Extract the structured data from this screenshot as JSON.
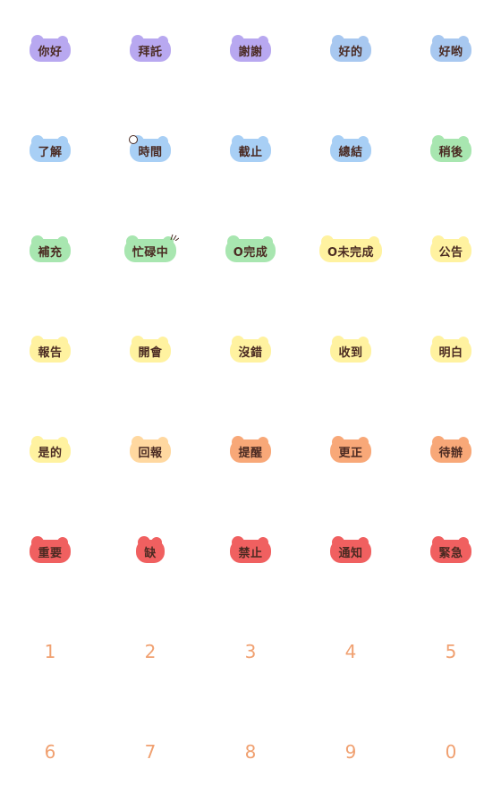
{
  "stickers": [
    {
      "text": "你好",
      "color": "#b8a8f0"
    },
    {
      "text": "拜託",
      "color": "#b8a8f0"
    },
    {
      "text": "謝謝",
      "color": "#b8a8f0"
    },
    {
      "text": "好的",
      "color": "#a8c8f0"
    },
    {
      "text": "好哟",
      "color": "#a8c8f0"
    },
    {
      "text": "了解",
      "color": "#a8cff5"
    },
    {
      "text": "時間",
      "color": "#a8cff5",
      "icon": "clock-icon"
    },
    {
      "text": "截止",
      "color": "#a8cff5"
    },
    {
      "text": "總結",
      "color": "#a8cff5"
    },
    {
      "text": "稍後",
      "color": "#a8e6b0"
    },
    {
      "text": "補充",
      "color": "#a8e6b0"
    },
    {
      "text": "忙碌中",
      "color": "#a8e6b0",
      "icon": "sparkle-lines-icon"
    },
    {
      "text": "O完成",
      "color": "#a8e6b0"
    },
    {
      "text": "O未完成",
      "color": "#fff2a0"
    },
    {
      "text": "公告",
      "color": "#fff2a0"
    },
    {
      "text": "報告",
      "color": "#fff2a0"
    },
    {
      "text": "開會",
      "color": "#fff2a0"
    },
    {
      "text": "沒錯",
      "color": "#fff2a0"
    },
    {
      "text": "收到",
      "color": "#fff2a0"
    },
    {
      "text": "明白",
      "color": "#fff2a0"
    },
    {
      "text": "是的",
      "color": "#fff2a0"
    },
    {
      "text": "回報",
      "color": "#ffd8a0"
    },
    {
      "text": "提醒",
      "color": "#f8a878"
    },
    {
      "text": "更正",
      "color": "#f8a878"
    },
    {
      "text": "待辦",
      "color": "#f8a878"
    },
    {
      "text": "重要",
      "color": "#f06060"
    },
    {
      "text": "缺",
      "color": "#f06060"
    },
    {
      "text": "禁止",
      "color": "#f06060"
    },
    {
      "text": "通知",
      "color": "#f06060"
    },
    {
      "text": "緊急",
      "color": "#f06060"
    }
  ],
  "digits": [
    "1",
    "2",
    "3",
    "4",
    "5",
    "6",
    "7",
    "8",
    "9",
    "0"
  ],
  "digit_color": "#f0a070"
}
